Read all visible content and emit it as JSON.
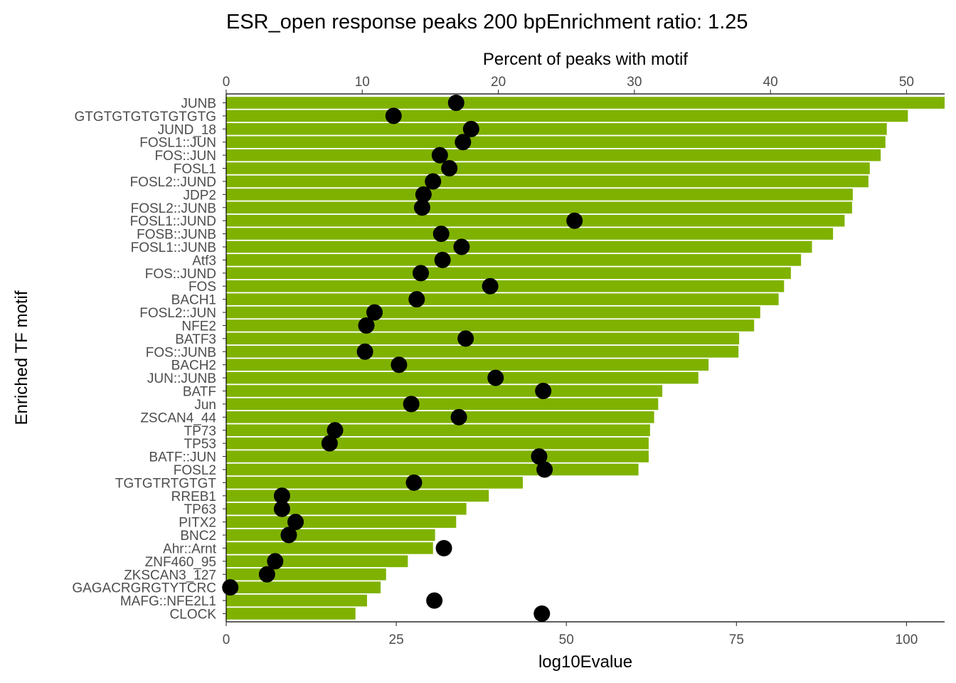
{
  "chart_data": {
    "type": "bar",
    "title": "ESR_open response peaks 200 bpEnrichment ratio: 1.25",
    "xlabel": "log10Evalue",
    "x2label": "Percent of peaks with motif",
    "ylabel": "Enriched TF motif",
    "xlim": [
      0,
      105.6
    ],
    "x_ticks": [
      "0",
      "25",
      "50",
      "75",
      "100"
    ],
    "x2lim": [
      0,
      52.8
    ],
    "x2_ticks": [
      "0",
      "10",
      "20",
      "30",
      "40",
      "50"
    ],
    "grid": false,
    "colors": {
      "bar": "#7fb200",
      "point": "#000000",
      "axis": "#000000",
      "tick": "#4d4d4d"
    },
    "categories": [
      "JUNB",
      "GTGTGTGTGTGTGTG",
      "JUND_18",
      "FOSL1::JUN",
      "FOS::JUN",
      "FOSL1",
      "FOSL2::JUND",
      "JDP2",
      "FOSL2::JUNB",
      "FOSL1::JUND",
      "FOSB::JUNB",
      "FOSL1::JUNB",
      "Atf3",
      "FOS::JUND",
      "FOS",
      "BACH1",
      "FOSL2::JUN",
      "NFE2",
      "BATF3",
      "FOS::JUNB",
      "BACH2",
      "JUN::JUNB",
      "BATF",
      "Jun",
      "ZSCAN4_44",
      "TP73",
      "TP53",
      "BATF::JUN",
      "FOSL2",
      "TGTGTRTGTGT",
      "RREB1",
      "TP63",
      "PITX2",
      "BNC2",
      "Ahr::Arnt",
      "ZNF460_95",
      "ZKSCAN3_127",
      "GAGACRGRGTYTCRC",
      "MAFG::NFE2L1",
      "CLOCK"
    ],
    "series": [
      {
        "axis": "bottom",
        "marker": "bar",
        "values": [
          105.6,
          100.2,
          97.1,
          96.9,
          96.2,
          94.6,
          94.4,
          92.1,
          92.0,
          90.9,
          89.2,
          86.1,
          84.5,
          83.0,
          82.0,
          81.2,
          78.5,
          77.6,
          75.4,
          75.3,
          70.9,
          69.4,
          64.1,
          63.5,
          62.9,
          62.3,
          62.1,
          62.1,
          60.6,
          43.6,
          38.6,
          35.3,
          33.8,
          30.7,
          30.4,
          26.7,
          23.5,
          22.7,
          20.7,
          19.0
        ]
      },
      {
        "axis": "top",
        "marker": "point",
        "values": [
          16.9,
          12.3,
          18.0,
          17.4,
          15.7,
          16.4,
          15.2,
          14.5,
          14.4,
          25.6,
          15.8,
          17.3,
          15.9,
          14.3,
          19.4,
          14.0,
          10.9,
          10.3,
          17.6,
          10.2,
          12.7,
          19.8,
          23.3,
          13.6,
          17.1,
          8.0,
          7.6,
          23.0,
          23.4,
          13.8,
          4.1,
          4.1,
          5.1,
          4.6,
          16.0,
          3.6,
          3.0,
          0.3,
          15.3,
          23.2
        ]
      }
    ]
  }
}
